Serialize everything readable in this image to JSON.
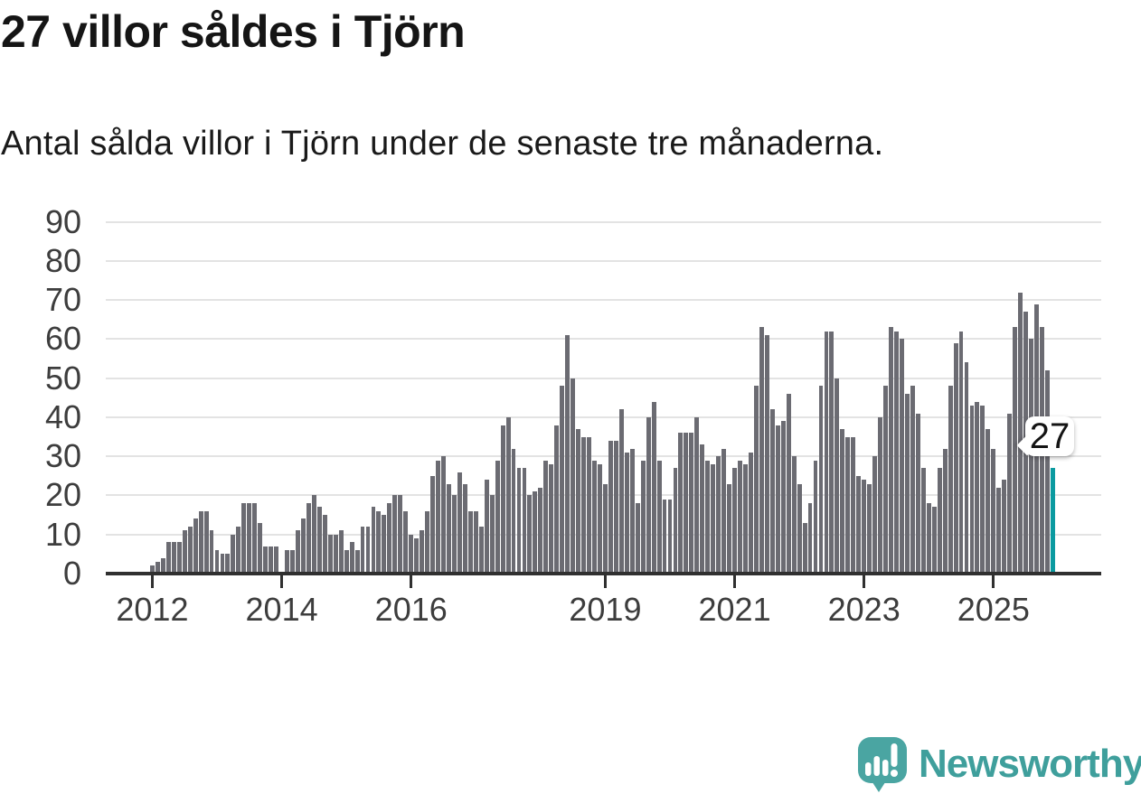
{
  "header": {
    "title": "27 villor såldes i Tjörn",
    "subtitle": "Antal sålda villor i Tjörn under de senaste tre månaderna."
  },
  "chart_data": {
    "type": "bar",
    "title": "27 villor såldes i Tjörn",
    "subtitle": "Antal sålda villor i Tjörn under de senaste tre månaderna.",
    "xlabel": "",
    "ylabel": "",
    "ylim": [
      0,
      90
    ],
    "y_ticks": [
      0,
      10,
      20,
      30,
      40,
      50,
      60,
      70,
      80,
      90
    ],
    "grid": true,
    "legend": false,
    "x_tick_labels": [
      {
        "index": 0,
        "label": "2012"
      },
      {
        "index": 24,
        "label": "2014"
      },
      {
        "index": 48,
        "label": "2016"
      },
      {
        "index": 84,
        "label": "2019"
      },
      {
        "index": 108,
        "label": "2021"
      },
      {
        "index": 132,
        "label": "2023"
      },
      {
        "index": 156,
        "label": "2025"
      }
    ],
    "values": [
      2,
      3,
      4,
      8,
      8,
      8,
      11,
      12,
      14,
      16,
      16,
      11,
      6,
      5,
      5,
      10,
      12,
      18,
      18,
      18,
      13,
      7,
      7,
      7,
      0,
      6,
      6,
      11,
      14,
      18,
      20,
      17,
      15,
      10,
      10,
      11,
      6,
      8,
      6,
      12,
      12,
      17,
      16,
      15,
      18,
      20,
      20,
      16,
      10,
      9,
      11,
      16,
      25,
      29,
      30,
      23,
      20,
      26,
      23,
      16,
      16,
      12,
      24,
      20,
      29,
      38,
      40,
      32,
      27,
      27,
      20,
      21,
      22,
      29,
      28,
      38,
      48,
      61,
      50,
      37,
      35,
      35,
      29,
      28,
      23,
      34,
      34,
      42,
      31,
      32,
      18,
      29,
      40,
      44,
      29,
      19,
      19,
      27,
      36,
      36,
      36,
      40,
      33,
      29,
      28,
      30,
      32,
      23,
      27,
      29,
      28,
      31,
      48,
      63,
      61,
      42,
      38,
      39,
      46,
      30,
      23,
      13,
      18,
      29,
      48,
      62,
      62,
      50,
      37,
      35,
      35,
      25,
      24,
      23,
      30,
      40,
      48,
      63,
      62,
      60,
      46,
      48,
      41,
      27,
      18,
      17,
      27,
      32,
      48,
      59,
      62,
      54,
      43,
      44,
      43,
      37,
      32,
      22,
      24,
      41,
      63,
      72,
      67,
      60,
      69,
      63,
      52,
      27
    ],
    "highlight": {
      "index": 167,
      "value": 27,
      "label": "27"
    },
    "colors": {
      "bar": "#6b6b72",
      "highlight": "#0b9aa0",
      "gridline": "#e3e3e3",
      "axis": "#303030",
      "label": "#3d3d3d"
    }
  },
  "branding": {
    "name": "Newsworthy",
    "logo_color": "#4aa5a2",
    "text_color": "#3f9f9c",
    "icon": "speech-bubble-bar-chart-icon"
  }
}
